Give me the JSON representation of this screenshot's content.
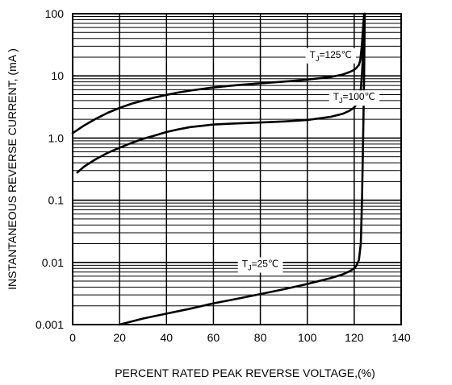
{
  "chart_data": {
    "type": "line",
    "xlabel": "PERCENT RATED PEAK REVERSE VOLTAGE,(%)",
    "ylabel": "INSTANTANEOUS REVERSE CURRENT, (mA )",
    "xlim": [
      0,
      140
    ],
    "ylim": [
      0.001,
      100
    ],
    "y_scale": "log",
    "grid": true,
    "x_ticks": [
      0,
      20,
      40,
      60,
      80,
      100,
      120,
      140
    ],
    "x_tick_labels": [
      "0",
      "20",
      "40",
      "60",
      "80",
      "100",
      "120",
      "140"
    ],
    "y_ticks": [
      0.001,
      0.01,
      0.1,
      1,
      10,
      100
    ],
    "y_tick_labels": [
      "0.001",
      "0.01",
      "0.1",
      "1.0",
      "10",
      "100"
    ],
    "series": [
      {
        "x": [
          0,
          5,
          10,
          15,
          20,
          25,
          30,
          35,
          40,
          45,
          50,
          60,
          70,
          80,
          90,
          100,
          110,
          115,
          118,
          120,
          121,
          122,
          122.6,
          123.2,
          123.8,
          124.2,
          124.5
        ],
        "y": [
          1.2,
          1.6,
          2.05,
          2.55,
          3.05,
          3.55,
          4.0,
          4.5,
          4.95,
          5.4,
          5.8,
          6.5,
          7.1,
          7.6,
          8.1,
          8.7,
          9.6,
          10.5,
          11.5,
          12.5,
          13.5,
          15,
          18,
          30,
          60,
          100,
          100
        ]
      },
      {
        "x": [
          2,
          5,
          10,
          15,
          20,
          25,
          30,
          35,
          40,
          45,
          50,
          60,
          70,
          80,
          90,
          100,
          110,
          115,
          118,
          120,
          121,
          122,
          122.8,
          123.4,
          124.0,
          124.5
        ],
        "y": [
          0.28,
          0.35,
          0.46,
          0.58,
          0.7,
          0.83,
          0.97,
          1.1,
          1.25,
          1.38,
          1.5,
          1.65,
          1.72,
          1.78,
          1.85,
          1.95,
          2.2,
          2.45,
          2.75,
          3.1,
          3.5,
          4.2,
          6,
          12,
          40,
          100
        ]
      },
      {
        "x": [
          20,
          30,
          40,
          50,
          60,
          70,
          80,
          90,
          100,
          110,
          115,
          118,
          120,
          121,
          122,
          122.8,
          123.3,
          123.8,
          124.2,
          124.5
        ],
        "y": [
          0.001,
          0.00125,
          0.0015,
          0.0018,
          0.0022,
          0.0026,
          0.0031,
          0.0037,
          0.0045,
          0.0056,
          0.0064,
          0.0072,
          0.008,
          0.009,
          0.011,
          0.02,
          0.1,
          1,
          10,
          100
        ]
      }
    ],
    "annotations": [
      {
        "main": "T",
        "sub": "J",
        "tail": "=125℃",
        "x": 110,
        "y": 22
      },
      {
        "main": "T",
        "sub": "J",
        "tail": "=100℃",
        "x": 120,
        "y": 4.6
      },
      {
        "main": "T",
        "sub": "J",
        "tail": "=25℃",
        "x": 80,
        "y": 0.0095
      }
    ]
  }
}
